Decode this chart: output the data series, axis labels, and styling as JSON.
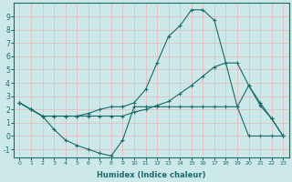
{
  "xlabel": "Humidex (Indice chaleur)",
  "bg_color": "#cce8e8",
  "line_color": "#1a6b6b",
  "grid_color": "#e8b8b8",
  "xlim": [
    -0.5,
    23.5
  ],
  "ylim": [
    -1.6,
    10.0
  ],
  "xticks": [
    0,
    1,
    2,
    3,
    4,
    5,
    6,
    7,
    8,
    9,
    10,
    11,
    12,
    13,
    14,
    15,
    16,
    17,
    18,
    19,
    20,
    21,
    22,
    23
  ],
  "yticks": [
    -1,
    0,
    1,
    2,
    3,
    4,
    5,
    6,
    7,
    8,
    9
  ],
  "line1_x": [
    0,
    1,
    2,
    3,
    4,
    5,
    6,
    7,
    8,
    9,
    10,
    11,
    12,
    13,
    14,
    15,
    16,
    17,
    18,
    19,
    20,
    21,
    22,
    23
  ],
  "line1_y": [
    2.5,
    2.0,
    1.5,
    0.5,
    -0.3,
    -0.7,
    -1.0,
    -1.3,
    -1.5,
    -0.3,
    2.2,
    2.2,
    2.2,
    2.2,
    2.2,
    2.2,
    2.2,
    2.2,
    2.2,
    2.2,
    3.8,
    2.5,
    1.3,
    0.0
  ],
  "line2_x": [
    0,
    1,
    2,
    3,
    4,
    5,
    6,
    7,
    8,
    9,
    10,
    11,
    12,
    13,
    14,
    15,
    16,
    17,
    18,
    19,
    20,
    21,
    22,
    23
  ],
  "line2_y": [
    2.5,
    2.0,
    1.5,
    1.5,
    1.5,
    1.5,
    1.5,
    1.5,
    1.5,
    1.5,
    1.8,
    2.0,
    2.3,
    2.6,
    3.2,
    3.8,
    4.5,
    5.2,
    5.5,
    2.2,
    0.0,
    0.0,
    0.0,
    0.0
  ],
  "line3_x": [
    0,
    1,
    2,
    3,
    4,
    5,
    6,
    7,
    8,
    9,
    10,
    11,
    12,
    13,
    14,
    15,
    16,
    17,
    18,
    19,
    20,
    21,
    22,
    23
  ],
  "line3_y": [
    2.5,
    2.0,
    1.5,
    1.5,
    1.5,
    1.5,
    1.7,
    2.0,
    2.2,
    2.2,
    2.5,
    3.5,
    5.5,
    7.5,
    8.3,
    9.5,
    9.5,
    8.7,
    5.5,
    5.5,
    3.8,
    2.3,
    1.3,
    0.0
  ]
}
